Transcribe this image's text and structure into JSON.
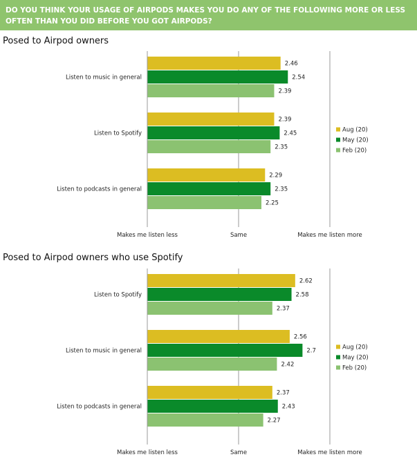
{
  "header": {
    "question": "DO YOU THINK YOUR USAGE OF AIRPODS MAKES YOU DO ANY OF THE FOLLOWING MORE OR LESS OFTEN THAN YOU DID BEFORE YOU GOT AIRPODS?"
  },
  "colors": {
    "header_bg": "#8fc46d",
    "aug": "#dcbd22",
    "may": "#0a8a2a",
    "feb": "#8bc271"
  },
  "chart_data": [
    {
      "type": "bar",
      "orientation": "horizontal",
      "title": "Posed to Airpod owners",
      "categories": [
        "Listen to music in general",
        "Listen to Spotify",
        "Listen to podcasts in general"
      ],
      "series": [
        {
          "name": "Aug (20)",
          "values": [
            2.46,
            2.39,
            2.29
          ]
        },
        {
          "name": "May (20)",
          "values": [
            2.54,
            2.45,
            2.35
          ]
        },
        {
          "name": "Feb (20)",
          "values": [
            2.39,
            2.35,
            2.25
          ]
        }
      ],
      "xlim": [
        1,
        3
      ],
      "xticks": [
        {
          "value": 1,
          "label": "Makes me listen less"
        },
        {
          "value": 2,
          "label": "Same"
        },
        {
          "value": 3,
          "label": "Makes me listen more"
        }
      ],
      "grid": true,
      "legend_position": "right"
    },
    {
      "type": "bar",
      "orientation": "horizontal",
      "title": "Posed to Airpod owners who use Spotify",
      "categories": [
        "Listen to Spotify",
        "Listen to music in general",
        "Listen to podcasts in general"
      ],
      "series": [
        {
          "name": "Aug (20)",
          "values": [
            2.62,
            2.56,
            2.37
          ]
        },
        {
          "name": "May (20)",
          "values": [
            2.58,
            2.7,
            2.43
          ]
        },
        {
          "name": "Feb (20)",
          "values": [
            2.37,
            2.42,
            2.27
          ]
        }
      ],
      "xlim": [
        1,
        3
      ],
      "xticks": [
        {
          "value": 1,
          "label": "Makes me listen less"
        },
        {
          "value": 2,
          "label": "Same"
        },
        {
          "value": 3,
          "label": "Makes me listen more"
        }
      ],
      "grid": true,
      "legend_position": "right"
    }
  ]
}
